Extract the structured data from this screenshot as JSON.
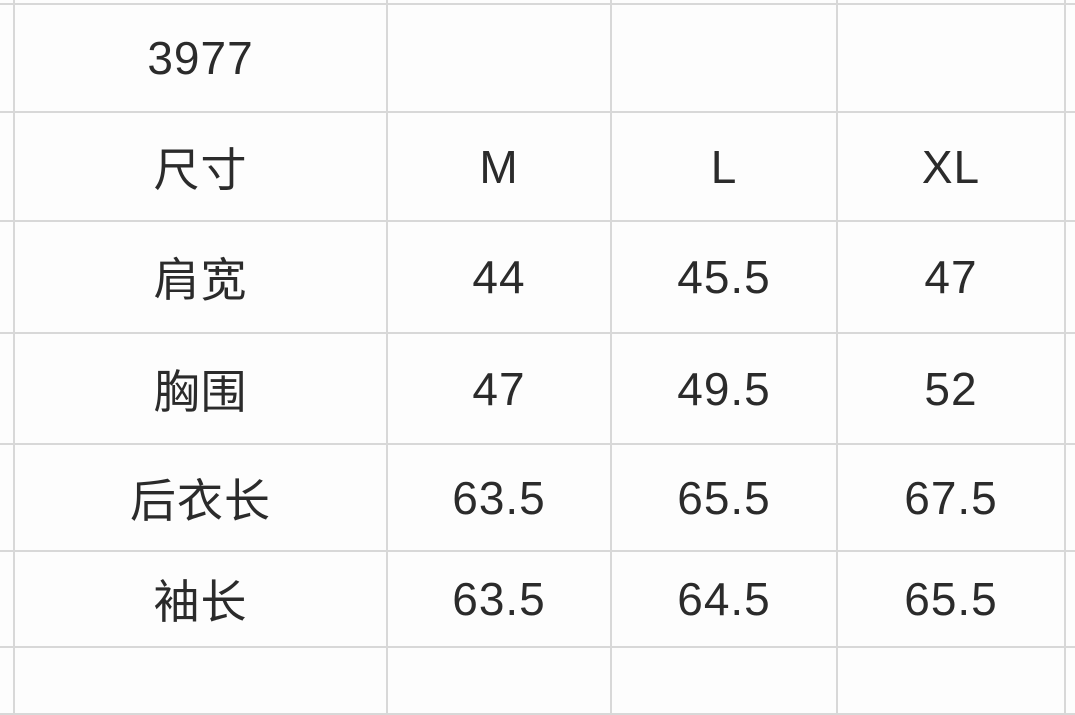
{
  "table": {
    "rows": [
      {
        "cells": [
          "3977",
          "",
          "",
          ""
        ]
      },
      {
        "cells": [
          "尺寸",
          "M",
          "L",
          "XL"
        ]
      },
      {
        "cells": [
          "肩宽",
          "44",
          "45.5",
          "47"
        ]
      },
      {
        "cells": [
          "胸围",
          "47",
          "49.5",
          "52"
        ]
      },
      {
        "cells": [
          "后衣长",
          "63.5",
          "65.5",
          "67.5"
        ]
      },
      {
        "cells": [
          "袖长",
          "63.5",
          "64.5",
          "65.5"
        ]
      }
    ]
  },
  "chart_data": {
    "type": "table",
    "title": "3977",
    "columns": [
      "尺寸",
      "M",
      "L",
      "XL"
    ],
    "rows": [
      [
        "肩宽",
        44,
        45.5,
        47
      ],
      [
        "胸围",
        47,
        49.5,
        52
      ],
      [
        "后衣长",
        63.5,
        65.5,
        67.5
      ],
      [
        "袖长",
        63.5,
        64.5,
        65.5
      ]
    ],
    "units_note": "",
    "layout": {
      "grid": true,
      "grid_color": "#d8d8d8",
      "text_color": "#2b2b2b",
      "background": "#fdfdfd",
      "cropped_edges": [
        "top",
        "bottom",
        "left",
        "right"
      ]
    }
  }
}
